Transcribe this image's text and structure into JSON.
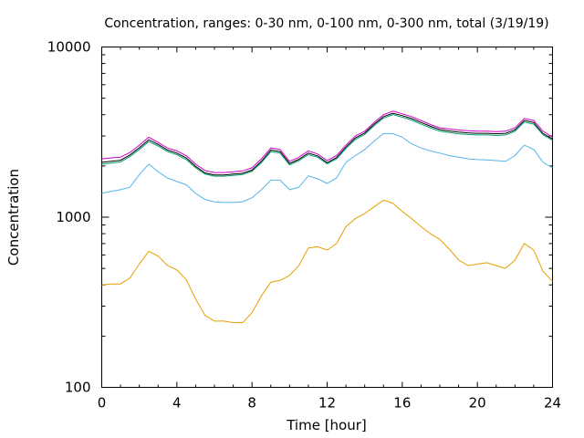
{
  "chart_data": {
    "type": "line",
    "title": "Concentration, ranges: 0-30 nm, 0-100 nm, 0-300 nm, total (3/19/19)",
    "xlabel": "Time [hour]",
    "ylabel": "Concentration",
    "xlim": [
      0,
      24
    ],
    "ylim": [
      100,
      10000
    ],
    "yscale": "log",
    "grid": false,
    "x_ticks": [
      0,
      4,
      8,
      12,
      16,
      20,
      24
    ],
    "x_tick_labels": [
      "0",
      "4",
      "8",
      "12",
      "16",
      "20",
      "24"
    ],
    "y_ticks": [
      100,
      1000,
      10000
    ],
    "y_tick_labels": [
      "100",
      "1000",
      "10000"
    ],
    "x": [
      0,
      0.5,
      1,
      1.5,
      2,
      2.5,
      3,
      3.5,
      4,
      4.5,
      5,
      5.5,
      6,
      6.5,
      7,
      7.5,
      8,
      8.5,
      9,
      9.5,
      10,
      10.5,
      11,
      11.5,
      12,
      12.5,
      13,
      13.5,
      14,
      14.5,
      15,
      15.5,
      16,
      16.5,
      17,
      17.5,
      18,
      18.5,
      19,
      19.5,
      20,
      20.5,
      21,
      21.5,
      22,
      22.5,
      23,
      23.5,
      24
    ],
    "series": [
      {
        "color": "#cc00cc",
        "values": [
          2200,
          2230,
          2250,
          2400,
          2650,
          2950,
          2750,
          2550,
          2450,
          2300,
          2050,
          1880,
          1830,
          1830,
          1850,
          1870,
          1950,
          2200,
          2550,
          2500,
          2130,
          2250,
          2450,
          2350,
          2150,
          2300,
          2650,
          3000,
          3200,
          3600,
          4000,
          4200,
          4050,
          3900,
          3700,
          3500,
          3350,
          3300,
          3250,
          3220,
          3200,
          3200,
          3180,
          3200,
          3350,
          3800,
          3700,
          3200,
          2950
        ]
      },
      {
        "color": "#000000",
        "values": [
          2100,
          2130,
          2160,
          2320,
          2560,
          2850,
          2680,
          2480,
          2380,
          2230,
          1990,
          1820,
          1770,
          1770,
          1790,
          1810,
          1890,
          2130,
          2480,
          2430,
          2070,
          2190,
          2380,
          2290,
          2090,
          2240,
          2580,
          2920,
          3120,
          3520,
          3900,
          4080,
          3950,
          3800,
          3600,
          3420,
          3270,
          3210,
          3160,
          3130,
          3110,
          3110,
          3090,
          3110,
          3260,
          3700,
          3600,
          3100,
          2880
        ]
      },
      {
        "color": "#009e73",
        "values": [
          2050,
          2080,
          2110,
          2270,
          2500,
          2780,
          2620,
          2430,
          2330,
          2180,
          1950,
          1790,
          1740,
          1740,
          1760,
          1780,
          1860,
          2090,
          2430,
          2380,
          2030,
          2150,
          2330,
          2250,
          2060,
          2200,
          2530,
          2860,
          3060,
          3450,
          3820,
          4000,
          3870,
          3720,
          3520,
          3350,
          3200,
          3140,
          3090,
          3060,
          3040,
          3040,
          3020,
          3040,
          3190,
          3620,
          3520,
          3050,
          2830
        ]
      },
      {
        "color": "#56b4e9",
        "values": [
          1380,
          1420,
          1450,
          1500,
          1780,
          2050,
          1850,
          1700,
          1620,
          1550,
          1380,
          1270,
          1230,
          1220,
          1220,
          1230,
          1300,
          1450,
          1650,
          1650,
          1450,
          1500,
          1750,
          1680,
          1580,
          1700,
          2100,
          2300,
          2500,
          2800,
          3100,
          3100,
          2950,
          2700,
          2550,
          2450,
          2380,
          2300,
          2250,
          2200,
          2180,
          2170,
          2150,
          2130,
          2300,
          2650,
          2500,
          2100,
          1950
        ]
      },
      {
        "color": "#e69f00",
        "values": [
          400,
          405,
          405,
          440,
          530,
          630,
          590,
          520,
          490,
          430,
          330,
          265,
          245,
          245,
          240,
          240,
          275,
          345,
          415,
          425,
          455,
          520,
          660,
          670,
          640,
          700,
          880,
          980,
          1050,
          1150,
          1260,
          1210,
          1080,
          980,
          880,
          800,
          740,
          650,
          560,
          520,
          530,
          540,
          520,
          500,
          560,
          700,
          640,
          480,
          420
        ]
      }
    ]
  }
}
